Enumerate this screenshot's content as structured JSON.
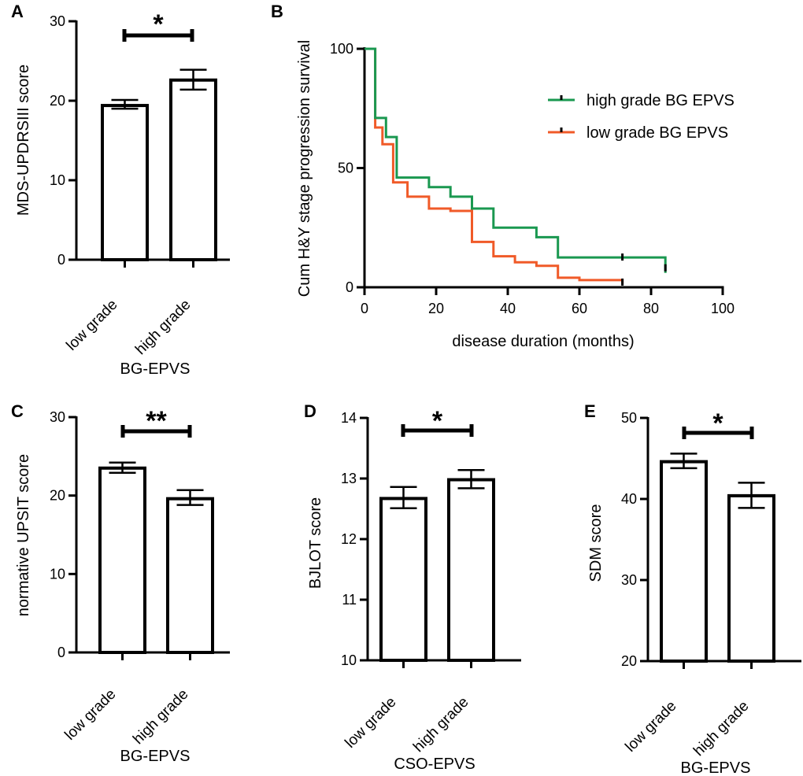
{
  "chart_data": [
    {
      "panel": "A",
      "type": "bar",
      "title": "",
      "categories": [
        "low grade",
        "high grade"
      ],
      "values": [
        19.4,
        22.6
      ],
      "errors": [
        [
          19.0,
          20.1
        ],
        [
          21.4,
          23.9
        ]
      ],
      "ylim": [
        0,
        30
      ],
      "yticks": [
        0,
        10,
        20,
        30
      ],
      "ylabel": "MDS-UPDRSIII score",
      "xlabel": "BG-EPVS",
      "significance": "*"
    },
    {
      "panel": "B",
      "type": "line",
      "title": "",
      "xlabel": "disease duration (months)",
      "ylabel": "Cum H&Y stage progression survival",
      "xlim": [
        0,
        100
      ],
      "ylim": [
        0,
        100
      ],
      "xticks": [
        0,
        20,
        40,
        60,
        80,
        100
      ],
      "yticks": [
        0,
        50,
        100
      ],
      "legend_position": "top-right",
      "series": [
        {
          "name": "high grade BG EPVS",
          "color": "#1a9850",
          "steps": [
            [
              0,
              100
            ],
            [
              3,
              100
            ],
            [
              3,
              71
            ],
            [
              6,
              71
            ],
            [
              6,
              63
            ],
            [
              9,
              63
            ],
            [
              9,
              46
            ],
            [
              18,
              46
            ],
            [
              18,
              42
            ],
            [
              24,
              42
            ],
            [
              24,
              38
            ],
            [
              30,
              38
            ],
            [
              30,
              33
            ],
            [
              36,
              33
            ],
            [
              36,
              25
            ],
            [
              48,
              25
            ],
            [
              48,
              21
            ],
            [
              54,
              21
            ],
            [
              54,
              12.5
            ],
            [
              84,
              12.5
            ],
            [
              84,
              6
            ]
          ],
          "censored": [
            [
              72,
              12.5
            ],
            [
              84,
              8
            ]
          ]
        },
        {
          "name": "low grade BG EPVS",
          "color": "#f05a28",
          "steps": [
            [
              0,
              100
            ],
            [
              3,
              100
            ],
            [
              3,
              67
            ],
            [
              5,
              67
            ],
            [
              5,
              60
            ],
            [
              8,
              60
            ],
            [
              8,
              44
            ],
            [
              12,
              44
            ],
            [
              12,
              38
            ],
            [
              18,
              38
            ],
            [
              18,
              33
            ],
            [
              24,
              33
            ],
            [
              24,
              32
            ],
            [
              30,
              32
            ],
            [
              30,
              19
            ],
            [
              36,
              19
            ],
            [
              36,
              13
            ],
            [
              42,
              13
            ],
            [
              42,
              10.5
            ],
            [
              48,
              10.5
            ],
            [
              48,
              9
            ],
            [
              54,
              9
            ],
            [
              54,
              4
            ],
            [
              60,
              4
            ],
            [
              60,
              3
            ],
            [
              72,
              3
            ],
            [
              72,
              1.5
            ]
          ],
          "censored": [
            [
              72,
              2
            ]
          ]
        }
      ]
    },
    {
      "panel": "C",
      "type": "bar",
      "title": "",
      "categories": [
        "low grade",
        "high grade"
      ],
      "values": [
        23.5,
        19.6
      ],
      "errors": [
        [
          22.9,
          24.2
        ],
        [
          18.8,
          20.7
        ]
      ],
      "ylim": [
        0,
        30
      ],
      "yticks": [
        0,
        10,
        20,
        30
      ],
      "ylabel": "normative UPSIT score",
      "xlabel": "BG-EPVS",
      "significance": "**"
    },
    {
      "panel": "D",
      "type": "bar",
      "title": "",
      "categories": [
        "low grade",
        "high grade"
      ],
      "values": [
        12.67,
        12.98
      ],
      "errors": [
        [
          12.51,
          12.86
        ],
        [
          12.84,
          13.14
        ]
      ],
      "ylim": [
        10,
        14
      ],
      "yticks": [
        10,
        11,
        12,
        13,
        14
      ],
      "ylabel": "BJLOT score",
      "xlabel": "CSO-EPVS",
      "significance": "*"
    },
    {
      "panel": "E",
      "type": "bar",
      "title": "",
      "categories": [
        "low grade",
        "high grade"
      ],
      "values": [
        44.6,
        40.4
      ],
      "errors": [
        [
          43.8,
          45.6
        ],
        [
          38.9,
          42.0
        ]
      ],
      "ylim": [
        20,
        50
      ],
      "yticks": [
        20,
        30,
        40,
        50
      ],
      "ylabel": "SDM score",
      "xlabel": "BG-EPVS",
      "significance": "*"
    }
  ]
}
